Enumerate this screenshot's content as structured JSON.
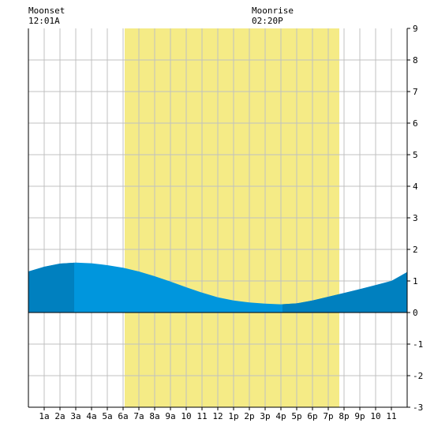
{
  "moon_labels": {
    "moonset": {
      "label": "Moonset",
      "time": "12:01A"
    },
    "moonrise": {
      "label": "Moonrise",
      "time": "02:20P"
    }
  },
  "colors": {
    "background": "#ffffff",
    "daylight": "#f5eb86",
    "grid": "#c0c0c0",
    "tide_light": "#0096dd",
    "tide_dark": "#0080bf",
    "axis": "#000000"
  },
  "chart_data": {
    "type": "area",
    "title": "",
    "xlabel": "",
    "ylabel": "",
    "xlim": [
      0,
      24
    ],
    "ylim": [
      -3,
      9
    ],
    "grid": true,
    "x_tick_labels": [
      "1a",
      "2a",
      "3a",
      "4a",
      "5a",
      "6a",
      "7a",
      "8a",
      "9a",
      "10",
      "11",
      "12",
      "1p",
      "2p",
      "3p",
      "4p",
      "5p",
      "6p",
      "7p",
      "8p",
      "9p",
      "10",
      "11"
    ],
    "y_tick_labels": [
      "-3",
      "-2",
      "-1",
      "0",
      "1",
      "2",
      "3",
      "4",
      "5",
      "6",
      "7",
      "8",
      "9"
    ],
    "daylight_hours": [
      6.1,
      19.7
    ],
    "darker_shading_ranges": [
      [
        0,
        2.9
      ],
      [
        16.1,
        24
      ]
    ],
    "series": [
      {
        "x": [
          0,
          1,
          2,
          3,
          4,
          5,
          6,
          7,
          8,
          9,
          10,
          11,
          12,
          13,
          14,
          15,
          16,
          17,
          18,
          19,
          20,
          21,
          22,
          23,
          24
        ],
        "y": [
          1.3,
          1.45,
          1.55,
          1.58,
          1.56,
          1.5,
          1.42,
          1.3,
          1.15,
          0.98,
          0.8,
          0.63,
          0.48,
          0.38,
          0.32,
          0.28,
          0.26,
          0.29,
          0.38,
          0.5,
          0.62,
          0.74,
          0.87,
          1.0,
          1.28
        ]
      }
    ]
  }
}
